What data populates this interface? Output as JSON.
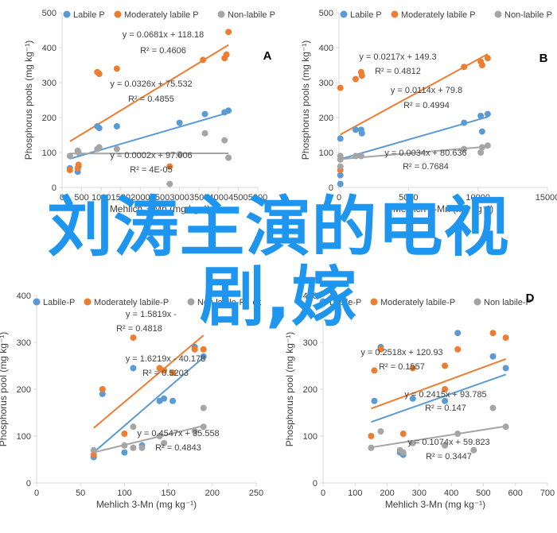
{
  "overlay": {
    "line1": "刘涛主演的电视",
    "line2": "剧,嫁"
  },
  "colors": {
    "labile": "#5b9bd5",
    "moderately_labile": "#ed7d31",
    "non_labile": "#a5a5a5",
    "overlay_text": "#1e96ef",
    "axis": "#d9d9d9",
    "text": "#404040"
  },
  "chart_data": [
    {
      "type": "scatter",
      "panel_label": "A",
      "xlabel": "Mehlich 3-Mn (mg kg⁻¹)",
      "ylabel": "Phosphorus pools (mg kg⁻¹)",
      "xlim": [
        0,
        5000
      ],
      "ylim": [
        0,
        500
      ],
      "xticks": [
        0,
        500,
        1000,
        1500,
        2000,
        2500,
        3000,
        3500,
        4000,
        4500,
        5000
      ],
      "yticks": [
        0,
        100,
        200,
        300,
        400,
        500
      ],
      "legend_position": "top",
      "series": [
        {
          "name": "Labile P",
          "color": "#5b9bd5",
          "points": [
            [
              200,
              55
            ],
            [
              400,
              45
            ],
            [
              420,
              60
            ],
            [
              900,
              175
            ],
            [
              950,
              170
            ],
            [
              1400,
              175
            ],
            [
              3000,
              185
            ],
            [
              3650,
              210
            ],
            [
              4150,
              215
            ],
            [
              4250,
              220
            ]
          ]
        },
        {
          "name": "Moderately labile P",
          "color": "#ed7d31",
          "points": [
            [
              200,
              50
            ],
            [
              400,
              55
            ],
            [
              420,
              65
            ],
            [
              900,
              330
            ],
            [
              950,
              325
            ],
            [
              1400,
              340
            ],
            [
              2750,
              60
            ],
            [
              3600,
              365
            ],
            [
              4150,
              370
            ],
            [
              4200,
              380
            ],
            [
              4250,
              445
            ]
          ]
        },
        {
          "name": "Non-labile P",
          "color": "#a5a5a5",
          "points": [
            [
              200,
              90
            ],
            [
              400,
              105
            ],
            [
              420,
              100
            ],
            [
              900,
              110
            ],
            [
              950,
              115
            ],
            [
              1400,
              110
            ],
            [
              2750,
              10
            ],
            [
              3000,
              95
            ],
            [
              3650,
              155
            ],
            [
              4150,
              135
            ],
            [
              4250,
              85
            ]
          ]
        }
      ],
      "trendlines": [
        {
          "series": "Moderately labile P",
          "slope": 0.0681,
          "intercept": 118.18,
          "x_range": [
            200,
            4250
          ]
        },
        {
          "series": "Labile P",
          "slope": 0.0326,
          "intercept": 75.532,
          "x_range": [
            200,
            4250
          ]
        },
        {
          "series": "Non-labile P",
          "slope": 0.0002,
          "intercept": 97.006,
          "x_range": [
            200,
            4250
          ]
        }
      ],
      "annotations": [
        {
          "text": "y = 0.0681x + 118.18",
          "series": "Moderately labile P"
        },
        {
          "text": "R² = 0.4606",
          "series": "Moderately labile P"
        },
        {
          "text": "y = 0.0326x + 75.532",
          "series": "Labile P"
        },
        {
          "text": "R² = 0.4855",
          "series": "Labile P"
        },
        {
          "text": "y = 0.0002x + 97.006",
          "series": "Non-labile P"
        },
        {
          "text": "R² = 4E-05",
          "series": "Non-labile P"
        }
      ]
    },
    {
      "type": "scatter",
      "panel_label": "B",
      "xlabel": "Mehlich 3-Mn (mg kg⁻¹)",
      "ylabel": "Phosphorus pools (mg kg⁻¹)",
      "xlim": [
        0,
        15000
      ],
      "ylim": [
        0,
        500
      ],
      "xticks": [
        0,
        5000,
        10000,
        15000
      ],
      "yticks": [
        0,
        100,
        200,
        300,
        400,
        500
      ],
      "legend_position": "top",
      "series": [
        {
          "name": "Labile P",
          "color": "#5b9bd5",
          "points": [
            [
              100,
              140
            ],
            [
              100,
              35
            ],
            [
              100,
              10
            ],
            [
              1200,
              165
            ],
            [
              1600,
              165
            ],
            [
              1650,
              155
            ],
            [
              9000,
              185
            ],
            [
              10200,
              205
            ],
            [
              10300,
              160
            ],
            [
              10700,
              210
            ]
          ]
        },
        {
          "name": "Moderately labile P",
          "color": "#ed7d31",
          "points": [
            [
              100,
              285
            ],
            [
              100,
              50
            ],
            [
              1200,
              310
            ],
            [
              1600,
              330
            ],
            [
              1650,
              320
            ],
            [
              9000,
              345
            ],
            [
              10200,
              360
            ],
            [
              10300,
              350
            ],
            [
              10700,
              370
            ]
          ]
        },
        {
          "name": "Non-labile P",
          "color": "#a5a5a5",
          "points": [
            [
              100,
              80
            ],
            [
              100,
              60
            ],
            [
              100,
              90
            ],
            [
              1200,
              90
            ],
            [
              1600,
              90
            ],
            [
              9000,
              110
            ],
            [
              10200,
              100
            ],
            [
              10300,
              115
            ],
            [
              10700,
              120
            ]
          ]
        }
      ],
      "trendlines": [
        {
          "series": "Moderately labile P",
          "slope": 0.0217,
          "intercept": 149.3,
          "x_range": [
            100,
            10700
          ]
        },
        {
          "series": "Labile P",
          "slope": 0.0114,
          "intercept": 79.8,
          "x_range": [
            100,
            10700
          ]
        },
        {
          "series": "Non-labile P",
          "slope": 0.0034,
          "intercept": 80.636,
          "x_range": [
            100,
            10700
          ]
        }
      ],
      "annotations": [
        {
          "text": "y = 0.0217x + 149.3",
          "series": "Moderately labile P"
        },
        {
          "text": "R² = 0.4812",
          "series": "Moderately labile P"
        },
        {
          "text": "y = 0.0114x + 79.8",
          "series": "Labile P"
        },
        {
          "text": "R² = 0.4994",
          "series": "Labile P"
        },
        {
          "text": "y = 0.0034x + 80.636",
          "series": "Non-labile P"
        },
        {
          "text": "R² = 0.7684",
          "series": "Non-labile P"
        }
      ]
    },
    {
      "type": "scatter",
      "panel_label": "C",
      "xlabel": "Mehlich 3-Mn (mg kg⁻¹)",
      "ylabel": "Phosphorus pool (mg kg⁻¹)",
      "xlim": [
        0,
        250
      ],
      "ylim": [
        0,
        400
      ],
      "xticks": [
        0,
        50,
        100,
        150,
        200,
        250
      ],
      "yticks": [
        0,
        100,
        200,
        300,
        400
      ],
      "legend_position": "top",
      "series": [
        {
          "name": "Labile-P",
          "color": "#5b9bd5",
          "points": [
            [
              65,
              55
            ],
            [
              75,
              190
            ],
            [
              100,
              65
            ],
            [
              110,
              245
            ],
            [
              120,
              80
            ],
            [
              140,
              175
            ],
            [
              145,
              180
            ],
            [
              155,
              175
            ],
            [
              180,
              290
            ],
            [
              190,
              270
            ]
          ]
        },
        {
          "name": "Moderately labile-P",
          "color": "#ed7d31",
          "points": [
            [
              65,
              60
            ],
            [
              75,
              200
            ],
            [
              100,
              105
            ],
            [
              110,
              310
            ],
            [
              140,
              245
            ],
            [
              145,
              240
            ],
            [
              155,
              235
            ],
            [
              180,
              285
            ],
            [
              190,
              285
            ]
          ]
        },
        {
          "name": "Non labile-P",
          "color": "#a5a5a5",
          "points": [
            [
              65,
              70
            ],
            [
              100,
              80
            ],
            [
              110,
              120
            ],
            [
              110,
              75
            ],
            [
              120,
              75
            ],
            [
              140,
              100
            ],
            [
              145,
              85
            ],
            [
              180,
              110
            ],
            [
              190,
              160
            ],
            [
              190,
              120
            ]
          ]
        }
      ],
      "trendlines": [
        {
          "series": "Moderately labile-P",
          "slope": 1.5819,
          "intercept": null,
          "x_range": [
            65,
            190
          ]
        },
        {
          "series": "Labile-P",
          "slope": 1.6219,
          "intercept": -40.178,
          "x_range": [
            65,
            190
          ]
        },
        {
          "series": "Non labile-P",
          "slope": 0.4547,
          "intercept": 35.558,
          "x_range": [
            65,
            190
          ]
        }
      ],
      "annotations": [
        {
          "text": "y = 1.5819x - ",
          "series": "Moderately labile-P"
        },
        {
          "text": "R² = 0.4818",
          "series": "Moderately labile-P"
        },
        {
          "text": "y = 1.6219x - 40.178",
          "series": "Labile-P"
        },
        {
          "text": "R² = 0.5203",
          "series": "Labile-P"
        },
        {
          "text": "y = 0.4547x + 35.558",
          "series": "Non labile-P"
        },
        {
          "text": "R² = 0.4843",
          "series": "Non labile-P"
        }
      ]
    },
    {
      "type": "scatter",
      "panel_label": "D",
      "xlabel": "Mehlich 3-Mn (mg kg⁻¹)",
      "ylabel": "Phosphorus pool (mg kg⁻¹)",
      "xlim": [
        0,
        700
      ],
      "ylim": [
        0,
        400
      ],
      "xticks": [
        0,
        100,
        200,
        300,
        400,
        500,
        600,
        700
      ],
      "yticks": [
        0,
        100,
        200,
        300,
        400
      ],
      "legend_position": "top",
      "series": [
        {
          "name": "Labile-P",
          "color": "#5b9bd5",
          "points": [
            [
              160,
              175
            ],
            [
              180,
              290
            ],
            [
              240,
              65
            ],
            [
              250,
              60
            ],
            [
              280,
              180
            ],
            [
              380,
              175
            ],
            [
              420,
              320
            ],
            [
              530,
              270
            ],
            [
              570,
              245
            ]
          ]
        },
        {
          "name": "Moderately labile-P",
          "color": "#ed7d31",
          "points": [
            [
              150,
              100
            ],
            [
              160,
              240
            ],
            [
              180,
              285
            ],
            [
              250,
              105
            ],
            [
              280,
              245
            ],
            [
              380,
              200
            ],
            [
              380,
              250
            ],
            [
              420,
              285
            ],
            [
              530,
              320
            ],
            [
              570,
              310
            ]
          ]
        },
        {
          "name": "Non labile-P",
          "color": "#a5a5a5",
          "points": [
            [
              150,
              75
            ],
            [
              180,
              110
            ],
            [
              240,
              70
            ],
            [
              250,
              65
            ],
            [
              280,
              85
            ],
            [
              380,
              80
            ],
            [
              420,
              105
            ],
            [
              470,
              70
            ],
            [
              530,
              160
            ],
            [
              570,
              120
            ]
          ]
        }
      ],
      "trendlines": [
        {
          "series": "Moderately labile-P",
          "slope": 0.2518,
          "intercept": 120.93,
          "x_range": [
            150,
            570
          ]
        },
        {
          "series": "Labile-P",
          "slope": 0.2415,
          "intercept": 93.785,
          "x_range": [
            150,
            570
          ]
        },
        {
          "series": "Non labile-P",
          "slope": 0.1074,
          "intercept": 59.823,
          "x_range": [
            150,
            570
          ]
        }
      ],
      "annotations": [
        {
          "text": "y = 0.2518x + 120.93",
          "series": "Moderately labile-P"
        },
        {
          "text": "R² = 0.1557",
          "series": "Moderately labile-P"
        },
        {
          "text": "y = 0.2415x + 93.785",
          "series": "Labile-P"
        },
        {
          "text": "R² = 0.147",
          "series": "Labile-P"
        },
        {
          "text": "y = 0.1074x + 59.823",
          "series": "Non labile-P"
        },
        {
          "text": "R² = 0.3447",
          "series": "Non labile-P"
        }
      ]
    }
  ]
}
